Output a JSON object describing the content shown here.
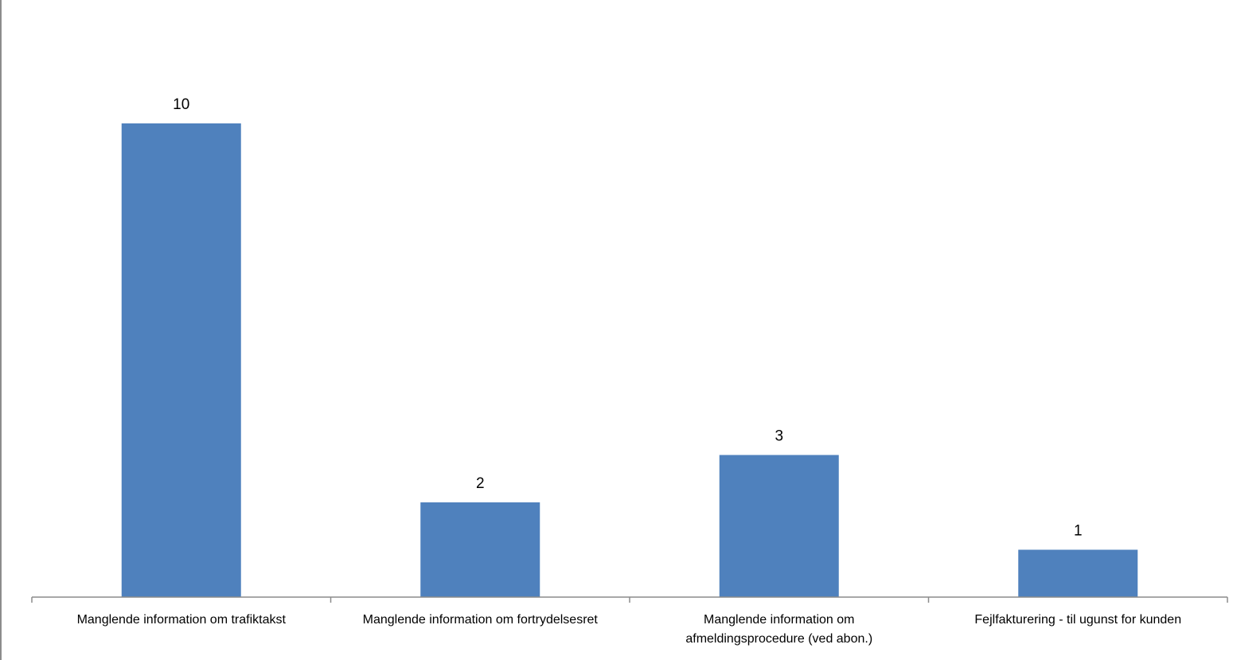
{
  "chart_data": {
    "type": "bar",
    "title": "",
    "xlabel": "",
    "ylabel": "",
    "categories": [
      [
        "Manglende information om trafiktakst"
      ],
      [
        "Manglende information om fortrydelsesret"
      ],
      [
        "Manglende information om",
        "afmeldingsprocedure (ved abon.)"
      ],
      [
        "Fejlfakturering - til ugunst for kunden"
      ]
    ],
    "values": [
      10,
      2,
      3,
      1
    ],
    "data_labels": [
      "10",
      "2",
      "3",
      "1"
    ],
    "ylim": [
      0,
      10.5
    ],
    "grid": false,
    "legend": "none",
    "bar_color": "#4f81bd",
    "axis_color": "#8c8c8c"
  }
}
